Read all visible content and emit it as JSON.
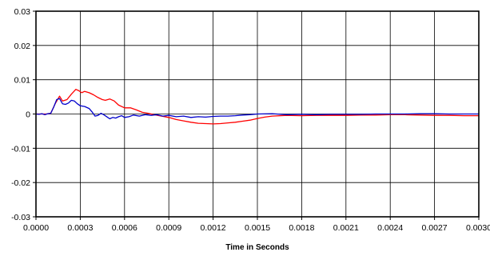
{
  "chart_data": {
    "type": "line",
    "title": "",
    "xlabel": "Time in Seconds",
    "ylabel": "",
    "xlim": [
      0,
      0.003
    ],
    "ylim": [
      -0.03,
      0.03
    ],
    "x_ticks": [
      "0.0000",
      "0.0003",
      "0.0006",
      "0.0009",
      "0.0012",
      "0.0015",
      "0.0018",
      "0.0021",
      "0.0024",
      "0.0027",
      "0.0030"
    ],
    "y_ticks": [
      "0.03",
      "0.02",
      "0.01",
      "0",
      "-0.01",
      "-0.02",
      "-0.03"
    ],
    "grid": true,
    "legend": "none",
    "series": [
      {
        "color": "#ff0000",
        "points": [
          [
            0,
            0
          ],
          [
            7e-05,
            0
          ],
          [
            0.0001,
            0.0002
          ],
          [
            0.00013,
            0.003
          ],
          [
            0.00016,
            0.0052
          ],
          [
            0.00018,
            0.0038
          ],
          [
            0.00021,
            0.0042
          ],
          [
            0.00024,
            0.0058
          ],
          [
            0.00027,
            0.0072
          ],
          [
            0.00029,
            0.0068
          ],
          [
            0.00031,
            0.0062
          ],
          [
            0.00033,
            0.0066
          ],
          [
            0.00036,
            0.0062
          ],
          [
            0.00039,
            0.0056
          ],
          [
            0.00042,
            0.0048
          ],
          [
            0.00045,
            0.0042
          ],
          [
            0.00047,
            0.004
          ],
          [
            0.0005,
            0.0044
          ],
          [
            0.00053,
            0.0038
          ],
          [
            0.00056,
            0.0026
          ],
          [
            0.0006,
            0.0018
          ],
          [
            0.00064,
            0.0018
          ],
          [
            0.00068,
            0.0012
          ],
          [
            0.00072,
            0.0005
          ],
          [
            0.00076,
            0.0002
          ],
          [
            0.0008,
            -0.0002
          ],
          [
            0.00085,
            -0.0006
          ],
          [
            0.0009,
            -0.001
          ],
          [
            0.00095,
            -0.0016
          ],
          [
            0.001,
            -0.002
          ],
          [
            0.00105,
            -0.0024
          ],
          [
            0.0011,
            -0.0027
          ],
          [
            0.00115,
            -0.0028
          ],
          [
            0.0012,
            -0.0029
          ],
          [
            0.00125,
            -0.0028
          ],
          [
            0.0013,
            -0.0026
          ],
          [
            0.00135,
            -0.0024
          ],
          [
            0.0014,
            -0.0021
          ],
          [
            0.00145,
            -0.0018
          ],
          [
            0.0015,
            -0.0013
          ],
          [
            0.00155,
            -0.0009
          ],
          [
            0.0016,
            -0.0006
          ],
          [
            0.0017,
            -0.0004
          ],
          [
            0.0018,
            -0.0005
          ],
          [
            0.0019,
            -0.0004
          ],
          [
            0.002,
            -0.0004
          ],
          [
            0.0021,
            -0.0004
          ],
          [
            0.0022,
            -0.0003
          ],
          [
            0.0023,
            -0.0003
          ],
          [
            0.0024,
            -0.0002
          ],
          [
            0.0025,
            -0.0002
          ],
          [
            0.0026,
            -0.0003
          ],
          [
            0.0027,
            -0.0004
          ],
          [
            0.0028,
            -0.0004
          ],
          [
            0.0029,
            -0.0005
          ],
          [
            0.003,
            -0.0005
          ]
        ]
      },
      {
        "color": "#0000cc",
        "points": [
          [
            0,
            0
          ],
          [
            2e-05,
            -0.0001
          ],
          [
            4e-05,
            0.0001
          ],
          [
            6e-05,
            -0.0002
          ],
          [
            8e-05,
            0.0001
          ],
          [
            0.0001,
            0.0002
          ],
          [
            0.00012,
            0.002
          ],
          [
            0.00014,
            0.0042
          ],
          [
            0.00016,
            0.0045
          ],
          [
            0.00018,
            0.003
          ],
          [
            0.0002,
            0.0028
          ],
          [
            0.00022,
            0.0032
          ],
          [
            0.00024,
            0.004
          ],
          [
            0.00026,
            0.0038
          ],
          [
            0.00028,
            0.003
          ],
          [
            0.0003,
            0.0024
          ],
          [
            0.00033,
            0.0022
          ],
          [
            0.00036,
            0.0016
          ],
          [
            0.00038,
            0.0006
          ],
          [
            0.0004,
            -0.0006
          ],
          [
            0.00042,
            -0.0004
          ],
          [
            0.00044,
            0.0002
          ],
          [
            0.00046,
            -0.0002
          ],
          [
            0.00048,
            -0.0008
          ],
          [
            0.0005,
            -0.0014
          ],
          [
            0.00052,
            -0.001
          ],
          [
            0.00054,
            -0.0012
          ],
          [
            0.00056,
            -0.0008
          ],
          [
            0.00058,
            -0.0005
          ],
          [
            0.0006,
            -0.001
          ],
          [
            0.00063,
            -0.0008
          ],
          [
            0.00066,
            -0.0003
          ],
          [
            0.0007,
            -0.0006
          ],
          [
            0.00074,
            -0.0002
          ],
          [
            0.00078,
            -0.0004
          ],
          [
            0.00082,
            -0.0002
          ],
          [
            0.00086,
            -0.0006
          ],
          [
            0.0009,
            -0.0004
          ],
          [
            0.00095,
            -0.0008
          ],
          [
            0.001,
            -0.0006
          ],
          [
            0.00105,
            -0.001
          ],
          [
            0.0011,
            -0.0008
          ],
          [
            0.00115,
            -0.0009
          ],
          [
            0.0012,
            -0.0007
          ],
          [
            0.00125,
            -0.0006
          ],
          [
            0.0013,
            -0.0006
          ],
          [
            0.00135,
            -0.0005
          ],
          [
            0.0014,
            -0.0003
          ],
          [
            0.00145,
            -0.0002
          ],
          [
            0.0015,
            0.0
          ],
          [
            0.0016,
            0.0001
          ],
          [
            0.0017,
            -0.0002
          ],
          [
            0.0018,
            -0.0001
          ],
          [
            0.0019,
            -0.0002
          ],
          [
            0.002,
            -0.0001
          ],
          [
            0.0021,
            -0.0001
          ],
          [
            0.0022,
            -0.0001
          ],
          [
            0.0023,
            0.0
          ],
          [
            0.0024,
            0.0
          ],
          [
            0.0025,
            0.0
          ],
          [
            0.0026,
            0.0001
          ],
          [
            0.0027,
            0.0001
          ],
          [
            0.0028,
            0.0
          ],
          [
            0.0029,
            0.0
          ],
          [
            0.003,
            0.0
          ]
        ]
      }
    ]
  }
}
